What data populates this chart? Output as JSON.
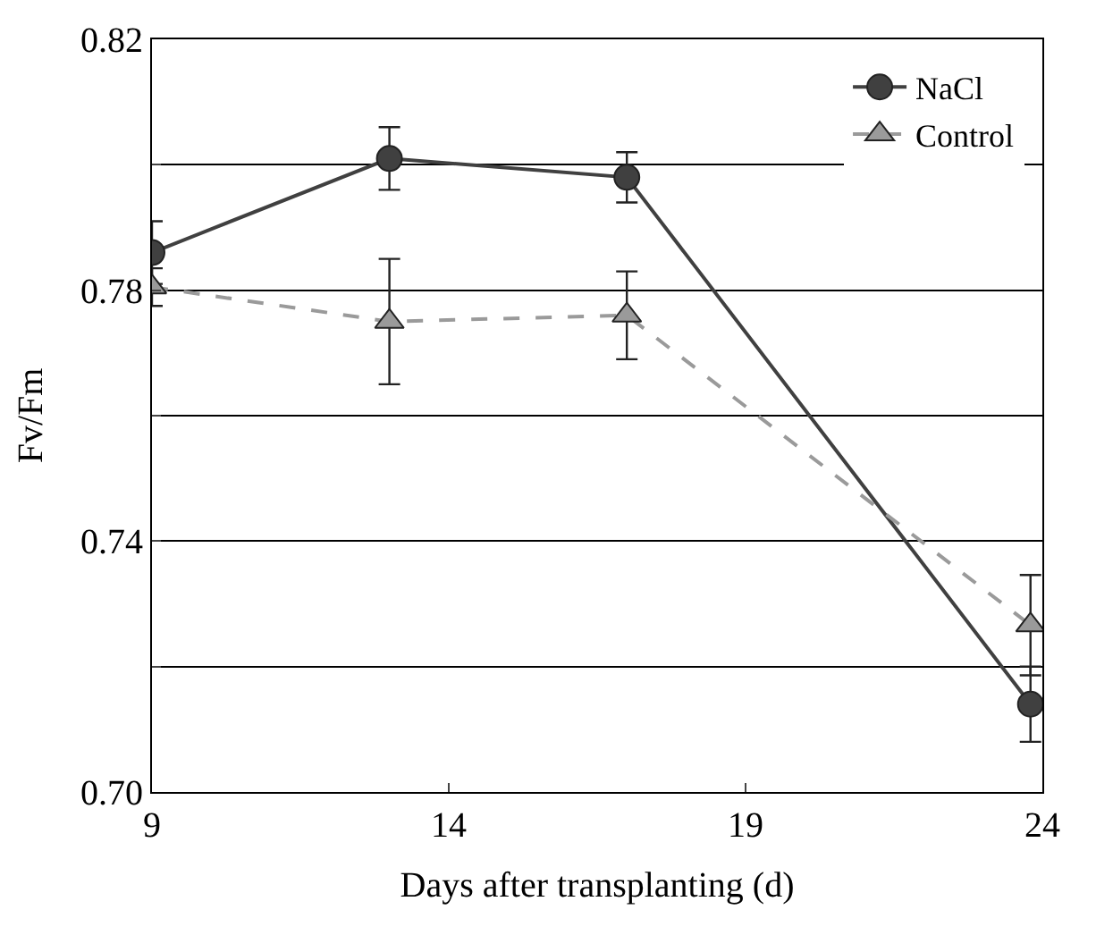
{
  "chart_data": {
    "type": "line",
    "xlabel": "Days after transplanting (d)",
    "ylabel": "Fv/Fm",
    "x": [
      9,
      13,
      17,
      23.8
    ],
    "series": [
      {
        "name": "NaCl",
        "color": "#404040",
        "values": [
          0.786,
          0.801,
          0.798,
          0.714
        ],
        "errors": [
          0.005,
          0.005,
          0.004,
          0.006
        ],
        "marker": "circle",
        "line_style": "solid"
      },
      {
        "name": "Control",
        "color": "#9a9a9a",
        "values": [
          0.7805,
          0.775,
          0.776,
          0.7266
        ],
        "errors": [
          0.003,
          0.01,
          0.007,
          0.008
        ],
        "marker": "triangle",
        "line_style": "dashed"
      }
    ],
    "xlim": [
      9,
      24
    ],
    "xticks": [
      9,
      14,
      19,
      24
    ],
    "ylim": [
      0.7,
      0.82
    ],
    "yticks": [
      {
        "value": 0.7,
        "label": "0.70"
      },
      {
        "value": 0.72,
        "label": null
      },
      0.74,
      {
        "value": 0.76,
        "label": null
      },
      0.78,
      {
        "value": 0.8,
        "label": null
      },
      0.82
    ],
    "grid": "y",
    "legend": "top right"
  }
}
